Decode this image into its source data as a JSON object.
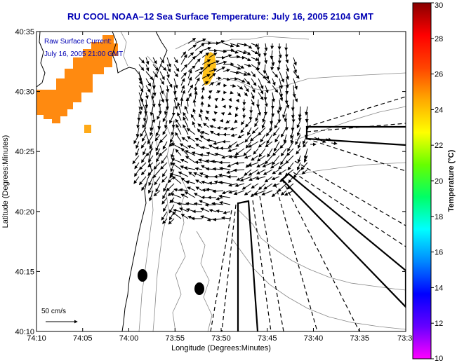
{
  "chart_data": {
    "type": "map",
    "title": "RU COOL  NOAA–12  Sea Surface Temperature:  July 16, 2005 2104 GMT",
    "xlabel": "Longitude (Degrees:Minutes)",
    "ylabel": "Latitude (Degrees:Minutes)",
    "xlim_minutes_west": [
      4450,
      4410
    ],
    "ylim_minutes_north": [
      2410,
      2435
    ],
    "x_ticks": [
      "74:10",
      "74:05",
      "74:00",
      "73:55",
      "73:50",
      "73:45",
      "73:40",
      "73:35",
      "73:3"
    ],
    "y_ticks": [
      "40:35",
      "40:30",
      "40:25",
      "40:20",
      "40:15",
      "40:10"
    ],
    "annotation_lines": [
      "Raw Surface Current:",
      "July 16, 2005 21:00 GMT"
    ],
    "scale_label": "50 cm/s",
    "colorbar": {
      "label": "Temperature (°C)",
      "range": [
        10,
        30
      ],
      "ticks": [
        "30",
        "28",
        "26",
        "24",
        "22",
        "20",
        "18",
        "16",
        "14",
        "12",
        "10"
      ],
      "stops": [
        "#ff00ff",
        "#6600ff",
        "#0000ff",
        "#0088ff",
        "#00ffff",
        "#00ff66",
        "#66ff00",
        "#ffff00",
        "#ffaa00",
        "#ff4400",
        "#ff0000",
        "#880000"
      ]
    },
    "sst_patches": [
      {
        "name": "northwest-warm-patch",
        "temp_c": 24.5,
        "color": "#ff8a10"
      },
      {
        "name": "nearshore-warm-patch",
        "temp_c": 23.8,
        "color": "#ffaa18"
      },
      {
        "name": "offshore-warm-patch",
        "temp_c": 23.2,
        "color": "#ffc11a"
      }
    ],
    "current_field": {
      "units": "cm/s",
      "scale_reference_cm_s": 50,
      "pattern": "clockwise eddy centered near 73:53W 40:29N"
    }
  }
}
